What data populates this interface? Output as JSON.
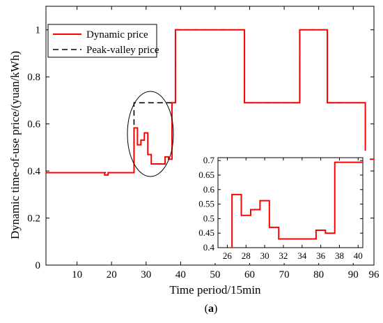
{
  "caption": {
    "open": "(",
    "letter": "a",
    "close": ")"
  },
  "chart_data": {
    "type": "line",
    "xlabel": "Time period/15min",
    "ylabel": "Dynamic time-of-use price/(yuan/kWh)",
    "xlim": [
      1,
      96
    ],
    "ylim": [
      0,
      1.1
    ],
    "xticks": [
      10,
      20,
      30,
      40,
      50,
      60,
      70,
      80,
      90,
      96
    ],
    "yticks": [
      0,
      0.2,
      0.4,
      0.6,
      0.8,
      1
    ],
    "legend_position": "top-left",
    "series": [
      {
        "name": "Dynamic price",
        "color": "#ff0000",
        "style": "solid",
        "points": [
          [
            1,
            0.393
          ],
          [
            18,
            0.393
          ],
          [
            18,
            0.383
          ],
          [
            19,
            0.383
          ],
          [
            19,
            0.393
          ],
          [
            26.5,
            0.393
          ],
          [
            26.5,
            0.583
          ],
          [
            27.5,
            0.583
          ],
          [
            27.5,
            0.511
          ],
          [
            28.5,
            0.511
          ],
          [
            28.5,
            0.531
          ],
          [
            29.5,
            0.531
          ],
          [
            29.5,
            0.562
          ],
          [
            30.5,
            0.562
          ],
          [
            30.5,
            0.47
          ],
          [
            31.5,
            0.47
          ],
          [
            31.5,
            0.43
          ],
          [
            35.5,
            0.43
          ],
          [
            35.5,
            0.46
          ],
          [
            36.5,
            0.46
          ],
          [
            36.5,
            0.45
          ],
          [
            37.5,
            0.45
          ],
          [
            37.5,
            0.69
          ],
          [
            38.5,
            0.69
          ],
          [
            38.5,
            1.0
          ],
          [
            58.5,
            1.0
          ],
          [
            58.5,
            0.69
          ],
          [
            74.5,
            0.69
          ],
          [
            74.5,
            1.0
          ],
          [
            82.5,
            1.0
          ],
          [
            82.5,
            0.69
          ],
          [
            93.5,
            0.69
          ],
          [
            93.5,
            0.42
          ],
          [
            94.3,
            0.42
          ],
          [
            94.3,
            0.45
          ],
          [
            96,
            0.45
          ]
        ]
      },
      {
        "name": "Peak-valley price",
        "color": "#000000",
        "style": "dashed",
        "points": [
          [
            1,
            0.393
          ],
          [
            26.5,
            0.393
          ],
          [
            26.5,
            0.69
          ],
          [
            38.5,
            0.69
          ],
          [
            38.5,
            1.0
          ],
          [
            58.5,
            1.0
          ],
          [
            58.5,
            0.69
          ],
          [
            74.5,
            0.69
          ],
          [
            74.5,
            1.0
          ],
          [
            82.5,
            1.0
          ],
          [
            82.5,
            0.69
          ],
          [
            93.5,
            0.69
          ]
        ]
      }
    ],
    "annotation": "ellipse around time periods 26-38 magnified in inset",
    "inset": {
      "xlim": [
        25,
        40.5
      ],
      "ylim": [
        0.4,
        0.71
      ],
      "xticks": [
        26,
        28,
        30,
        32,
        34,
        36,
        38,
        40
      ],
      "yticks": [
        0.4,
        0.45,
        0.5,
        0.55,
        0.6,
        0.65,
        0.7
      ],
      "series": {
        "color": "#ff0000",
        "points": [
          [
            26.5,
            0.395
          ],
          [
            26.5,
            0.583
          ],
          [
            27.5,
            0.583
          ],
          [
            27.5,
            0.511
          ],
          [
            28.5,
            0.511
          ],
          [
            28.5,
            0.531
          ],
          [
            29.5,
            0.531
          ],
          [
            29.5,
            0.562
          ],
          [
            30.5,
            0.562
          ],
          [
            30.5,
            0.47
          ],
          [
            31.5,
            0.47
          ],
          [
            31.5,
            0.43
          ],
          [
            35.5,
            0.43
          ],
          [
            35.5,
            0.46
          ],
          [
            36.5,
            0.46
          ],
          [
            36.5,
            0.45
          ],
          [
            37.5,
            0.45
          ],
          [
            37.5,
            0.694
          ],
          [
            40.5,
            0.694
          ]
        ]
      }
    }
  }
}
